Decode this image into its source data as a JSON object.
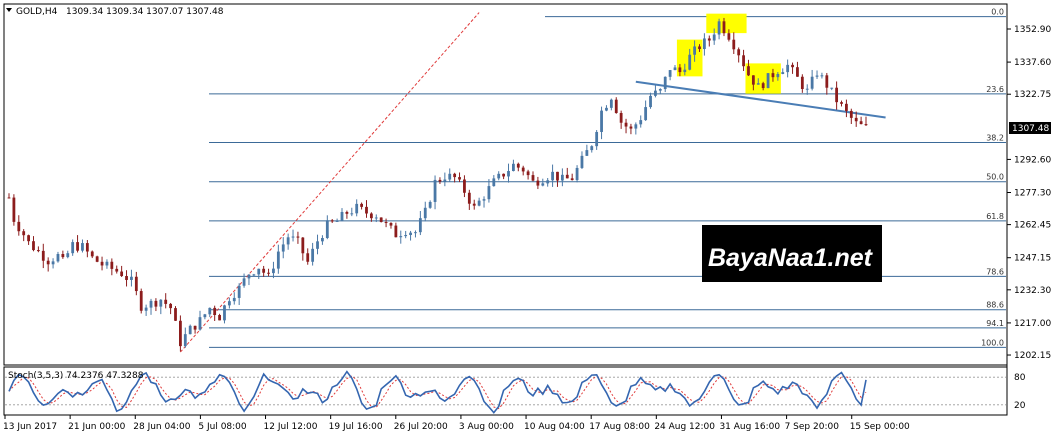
{
  "header": {
    "symbol": "GOLD,H4",
    "ohlc": "1309.34 1309.34 1307.07 1307.48"
  },
  "watermark": {
    "text": "BayaNaa1.net"
  },
  "colors": {
    "background": "#ffffff",
    "bull_candle": "#4a78a6",
    "bear_candle": "#8c1c1c",
    "fib_line": "#3b6a98",
    "trend_dashed": "#e03a3a",
    "neckline": "#4a7db5",
    "highlight": "#ffff00",
    "stoch_main": "#3566b0",
    "stoch_signal": "#e03a3a",
    "watermark_bg": "#000000",
    "price_label_bg": "#000000"
  },
  "chart_data": {
    "type": "candlestick",
    "title": "GOLD,H4",
    "ylim": [
      1198,
      1364
    ],
    "current_price": "1307.48",
    "price_ticks": [
      "1352.90",
      "1337.60",
      "1322.75",
      "1307.48",
      "1292.60",
      "1277.30",
      "1262.45",
      "1247.15",
      "1232.30",
      "1217.00",
      "1202.15"
    ],
    "time_ticks": [
      "13 Jun 2017",
      "21 Jun 00:00",
      "28 Jun 04:00",
      "5 Jul 08:00",
      "12 Jul 12:00",
      "19 Jul 16:00",
      "26 Jul 20:00",
      "3 Aug 00:00",
      "10 Aug 04:00",
      "17 Aug 08:00",
      "24 Aug 12:00",
      "31 Aug 16:00",
      "7 Sep 20:00",
      "15 Sep 00:00"
    ],
    "fibonacci": [
      {
        "label": "0.0",
        "price": 1358.6
      },
      {
        "label": "23.6",
        "price": 1322.9
      },
      {
        "label": "38.2",
        "price": 1300.4
      },
      {
        "label": "50.0",
        "price": 1282.3
      },
      {
        "label": "61.8",
        "price": 1264.2
      },
      {
        "label": "78.6",
        "price": 1238.5
      },
      {
        "label": "88.6",
        "price": 1223.1
      },
      {
        "label": "94.1",
        "price": 1214.7
      },
      {
        "label": "100.0",
        "price": 1205.7
      }
    ],
    "price_path": [
      [
        0,
        1275
      ],
      [
        1,
        1265
      ],
      [
        3,
        1258
      ],
      [
        4,
        1254
      ],
      [
        6,
        1250
      ],
      [
        8,
        1246
      ],
      [
        10,
        1248
      ],
      [
        11,
        1245
      ],
      [
        13,
        1253
      ],
      [
        15,
        1252
      ],
      [
        17,
        1247
      ],
      [
        19,
        1244
      ],
      [
        21,
        1242
      ],
      [
        23,
        1240
      ],
      [
        25,
        1236
      ],
      [
        27,
        1225
      ],
      [
        29,
        1226
      ],
      [
        31,
        1228
      ],
      [
        33,
        1224
      ],
      [
        35,
        1208
      ],
      [
        37,
        1214
      ],
      [
        39,
        1218
      ],
      [
        41,
        1224
      ],
      [
        43,
        1220
      ],
      [
        45,
        1229
      ],
      [
        47,
        1233
      ],
      [
        49,
        1240
      ],
      [
        51,
        1243
      ],
      [
        53,
        1238
      ],
      [
        55,
        1250
      ],
      [
        57,
        1257
      ],
      [
        59,
        1254
      ],
      [
        61,
        1245
      ],
      [
        63,
        1255
      ],
      [
        65,
        1262
      ],
      [
        67,
        1264
      ],
      [
        69,
        1268
      ],
      [
        71,
        1270
      ],
      [
        73,
        1268
      ],
      [
        75,
        1267
      ],
      [
        77,
        1262
      ],
      [
        79,
        1258
      ],
      [
        81,
        1260
      ],
      [
        83,
        1259
      ],
      [
        85,
        1268
      ],
      [
        87,
        1282
      ],
      [
        89,
        1285
      ],
      [
        91,
        1284
      ],
      [
        93,
        1278
      ],
      [
        95,
        1270
      ],
      [
        97,
        1276
      ],
      [
        99,
        1282
      ],
      [
        101,
        1286
      ],
      [
        103,
        1290
      ],
      [
        105,
        1288
      ],
      [
        107,
        1282
      ],
      [
        109,
        1284
      ],
      [
        111,
        1286
      ],
      [
        113,
        1283
      ],
      [
        115,
        1284
      ],
      [
        117,
        1292
      ],
      [
        119,
        1300
      ],
      [
        121,
        1315
      ],
      [
        123,
        1322
      ],
      [
        125,
        1310
      ],
      [
        127,
        1306
      ],
      [
        129,
        1312
      ],
      [
        131,
        1322
      ],
      [
        133,
        1324
      ],
      [
        135,
        1335
      ],
      [
        137,
        1333
      ],
      [
        139,
        1340
      ],
      [
        141,
        1345
      ],
      [
        143,
        1348
      ],
      [
        145,
        1356
      ],
      [
        147,
        1350
      ],
      [
        149,
        1342
      ],
      [
        151,
        1332
      ],
      [
        153,
        1326
      ],
      [
        155,
        1330
      ],
      [
        157,
        1334
      ],
      [
        159,
        1336
      ],
      [
        161,
        1330
      ],
      [
        163,
        1324
      ],
      [
        165,
        1333
      ],
      [
        167,
        1327
      ],
      [
        169,
        1320
      ],
      [
        171,
        1314
      ],
      [
        173,
        1309
      ],
      [
        175,
        1307
      ]
    ],
    "candle_count": 176,
    "neckline": {
      "from_index": 128,
      "from_price": 1328.5,
      "to_index": 179,
      "to_price": 1312.0
    },
    "trend_dashed": {
      "from_index": 35,
      "from_price": 1203.5,
      "to_index": 96,
      "to_price": 1360.5
    },
    "highlight_boxes": [
      {
        "from_index": 137,
        "to_index": 141,
        "price_low": 1331,
        "price_high": 1348
      },
      {
        "from_index": 143,
        "to_index": 150,
        "price_low": 1351,
        "price_high": 1360
      },
      {
        "from_index": 151,
        "to_index": 157,
        "price_low": 1323,
        "price_high": 1337
      }
    ],
    "stochastic": {
      "label": "Stoch(3,5,3) 74.2376 47.3288",
      "k": 74.2376,
      "d": 47.3288,
      "ylim": [
        0,
        100
      ],
      "levels": [
        80,
        20
      ],
      "level_labels": [
        "80",
        "20"
      ]
    }
  }
}
